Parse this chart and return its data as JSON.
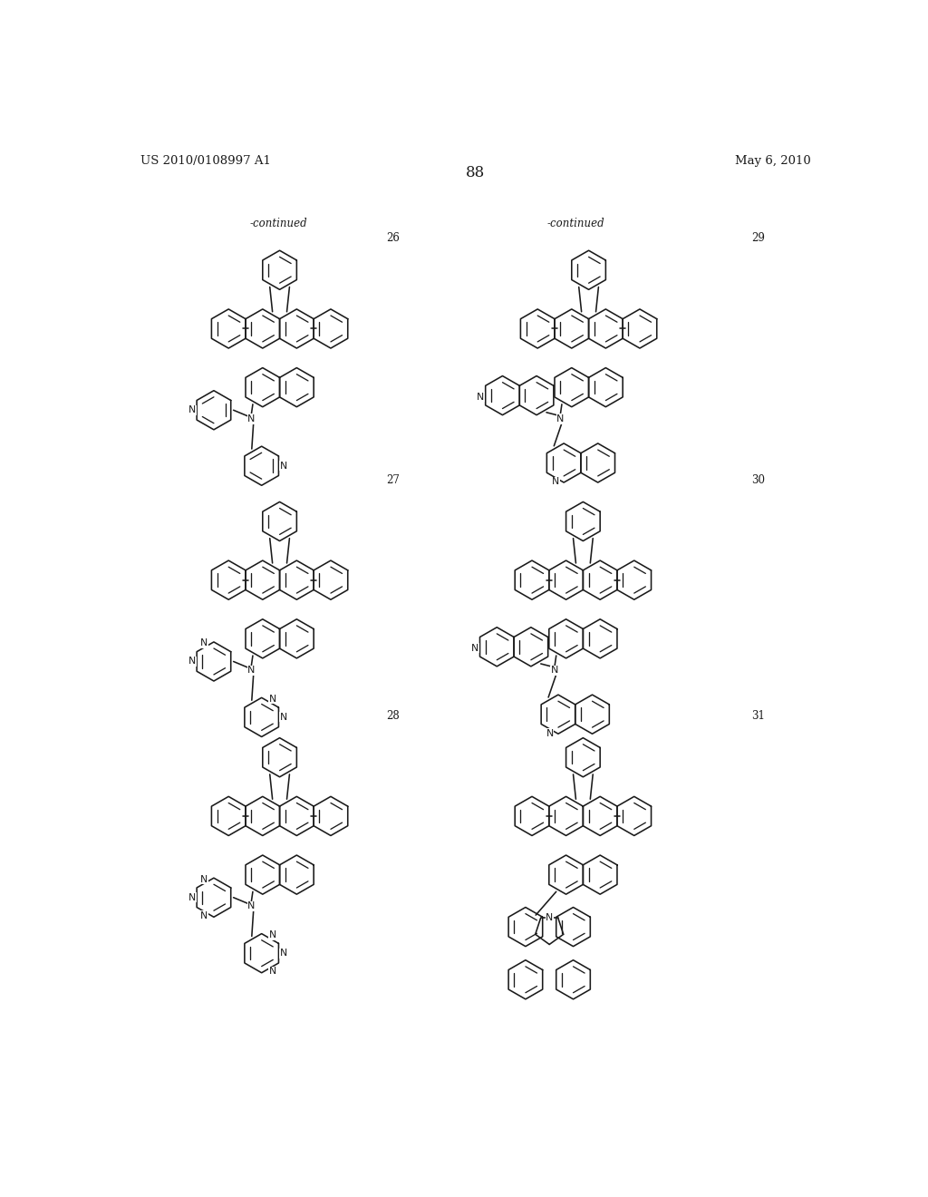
{
  "page_number": "88",
  "patent_number": "US 2010/0108997 A1",
  "patent_date": "May 6, 2010",
  "bg": "#ffffff",
  "fg": "#1a1a1a",
  "lw": 1.15,
  "R": 28,
  "continued_text": "-continued",
  "compound_labels": [
    "26",
    "27",
    "28",
    "29",
    "30",
    "31"
  ]
}
